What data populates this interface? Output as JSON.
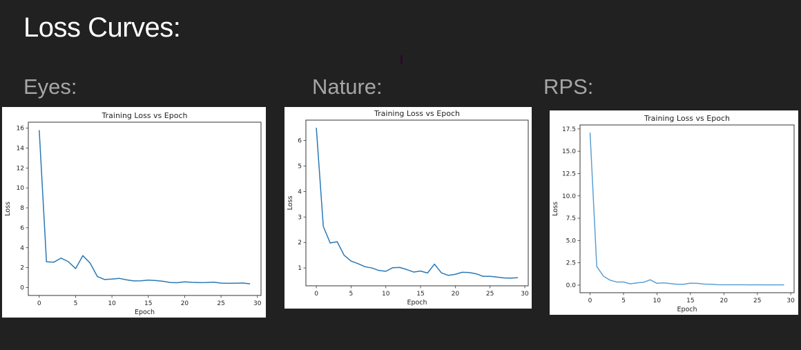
{
  "slide": {
    "title": "Loss Curves:",
    "sections": [
      {
        "label": "Eyes:"
      },
      {
        "label": "Nature:"
      },
      {
        "label": "RPS:"
      }
    ]
  },
  "chart_data": [
    {
      "name": "Eyes",
      "type": "line",
      "title": "Training Loss vs Epoch",
      "xlabel": "Epoch",
      "ylabel": "Loss",
      "xlim": [
        -1.5,
        30.5
      ],
      "ylim": [
        -0.8,
        16.6
      ],
      "xticks": [
        0,
        5,
        10,
        15,
        20,
        25,
        30
      ],
      "yticks": [
        0,
        2,
        4,
        6,
        8,
        10,
        12,
        14,
        16
      ],
      "ytick_labels": [
        "0",
        "2",
        "4",
        "6",
        "8",
        "10",
        "12",
        "14",
        "16"
      ],
      "line_color": "#2878b5",
      "grid": false,
      "x": [
        0,
        1,
        2,
        3,
        4,
        5,
        6,
        7,
        8,
        9,
        10,
        11,
        12,
        13,
        14,
        15,
        16,
        17,
        18,
        19,
        20,
        21,
        22,
        23,
        24,
        25,
        26,
        27,
        28,
        29
      ],
      "values": [
        15.8,
        2.58,
        2.54,
        2.95,
        2.6,
        1.9,
        3.2,
        2.45,
        1.1,
        0.8,
        0.85,
        0.92,
        0.77,
        0.66,
        0.68,
        0.74,
        0.7,
        0.63,
        0.5,
        0.48,
        0.57,
        0.52,
        0.49,
        0.5,
        0.54,
        0.44,
        0.42,
        0.43,
        0.45,
        0.37
      ]
    },
    {
      "name": "Nature",
      "type": "line",
      "title": "Training Loss vs Epoch",
      "xlabel": "Epoch",
      "ylabel": "Loss",
      "xlim": [
        -1.5,
        30.5
      ],
      "ylim": [
        0.3,
        6.8
      ],
      "xticks": [
        0,
        5,
        10,
        15,
        20,
        25,
        30
      ],
      "yticks": [
        1,
        2,
        3,
        4,
        5,
        6
      ],
      "ytick_labels": [
        "1",
        "2",
        "3",
        "4",
        "5",
        "6"
      ],
      "line_color": "#2878b5",
      "grid": false,
      "x": [
        0,
        1,
        2,
        3,
        4,
        5,
        6,
        7,
        8,
        9,
        10,
        11,
        12,
        13,
        14,
        15,
        16,
        17,
        18,
        19,
        20,
        21,
        22,
        23,
        24,
        25,
        26,
        27,
        28,
        29
      ],
      "values": [
        6.5,
        2.63,
        1.98,
        2.03,
        1.5,
        1.27,
        1.17,
        1.05,
        1.0,
        0.9,
        0.87,
        1.01,
        1.02,
        0.94,
        0.84,
        0.88,
        0.8,
        1.15,
        0.81,
        0.71,
        0.75,
        0.83,
        0.82,
        0.77,
        0.67,
        0.67,
        0.64,
        0.61,
        0.6,
        0.62
      ]
    },
    {
      "name": "RPS",
      "type": "line",
      "title": "Training Loss vs Epoch",
      "xlabel": "Epoch",
      "ylabel": "Loss",
      "xlim": [
        -1.5,
        30.5
      ],
      "ylim": [
        -0.85,
        17.95
      ],
      "xticks": [
        0,
        5,
        10,
        15,
        20,
        25,
        30
      ],
      "yticks": [
        0.0,
        2.5,
        5.0,
        7.5,
        10.0,
        12.5,
        15.0,
        17.5
      ],
      "ytick_labels": [
        "0.0",
        "2.5",
        "5.0",
        "7.5",
        "10.0",
        "12.5",
        "15.0",
        "17.5"
      ],
      "line_color": "#5b9fd4",
      "grid": false,
      "x": [
        0,
        1,
        2,
        3,
        4,
        5,
        6,
        7,
        8,
        9,
        10,
        11,
        12,
        13,
        14,
        15,
        16,
        17,
        18,
        19,
        20,
        21,
        22,
        23,
        24,
        25,
        26,
        27,
        28,
        29
      ],
      "values": [
        17.1,
        2.1,
        1.0,
        0.55,
        0.35,
        0.35,
        0.15,
        0.25,
        0.32,
        0.6,
        0.2,
        0.25,
        0.17,
        0.1,
        0.1,
        0.22,
        0.2,
        0.12,
        0.1,
        0.05,
        0.04,
        0.04,
        0.04,
        0.04,
        0.03,
        0.04,
        0.03,
        0.03,
        0.03,
        0.03
      ]
    }
  ]
}
